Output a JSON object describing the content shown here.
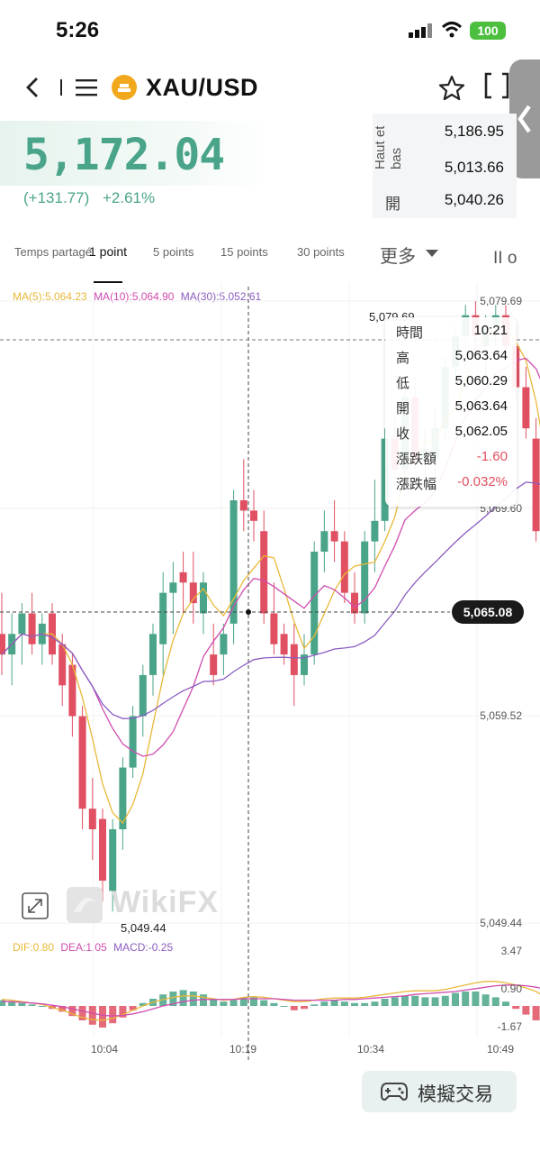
{
  "status": {
    "time": "5:26",
    "battery": "100"
  },
  "header": {
    "symbol": "XAU/USD"
  },
  "price": {
    "last": "5,172.04",
    "change": "(+131.77)",
    "change_pct": "+2.61%",
    "stats": [
      {
        "label": "Haut et bas",
        "value": "5,186.95"
      },
      {
        "label": "",
        "value": "5,013.66"
      },
      {
        "label": "開",
        "value": "5,040.26"
      }
    ]
  },
  "tabs": {
    "items": [
      "Temps partagé",
      "1 point",
      "5 points",
      "15 points",
      "30 points",
      "更多"
    ],
    "active": "1 point",
    "extra": "II o"
  },
  "ma_legend": {
    "ma5": "MA(5):5,064.23",
    "ma10": "MA(10):5,064.90",
    "ma30": "MA(30):5,052.61",
    "colors": {
      "ma5": "#e8b838",
      "ma10": "#d04cb0",
      "ma30": "#8a5cc0"
    }
  },
  "tooltip": {
    "rows": [
      {
        "k": "時間",
        "v": "10:21"
      },
      {
        "k": "高",
        "v": "5,063.64"
      },
      {
        "k": "低",
        "v": "5,060.29"
      },
      {
        "k": "開",
        "v": "5,063.64"
      },
      {
        "k": "收",
        "v": "5,062.05"
      },
      {
        "k": "漲跌額",
        "v": "-1.60"
      },
      {
        "k": "漲跌幅",
        "v": "-0.032%"
      }
    ]
  },
  "crosshair_price": "5,065.08",
  "macd_legend": {
    "dif": "DIF:0.80",
    "dea": "DEA:1.05",
    "macd": "MACD:-0.25"
  },
  "bottom_button": "模擬交易",
  "watermark": "WikiFX",
  "colors": {
    "up": "#4aa48a",
    "down": "#e05062"
  },
  "chart_data": {
    "type": "candlestick",
    "price_axis_ticks": [
      "5,079.69",
      "5,069.60",
      "5,059.52",
      "5,049.44"
    ],
    "macd_axis_ticks": [
      "3.47",
      "0.90",
      "-1.67"
    ],
    "x_ticks": [
      "10:04",
      "10:19",
      "10:34",
      "10:49"
    ],
    "ylim": [
      5049.44,
      5079.69
    ],
    "low_label": "5,049.44",
    "high_label": "5,079.69",
    "candles": [
      {
        "o": 5063.5,
        "h": 5065.5,
        "l": 5061.5,
        "c": 5062.5
      },
      {
        "o": 5062.5,
        "h": 5064.5,
        "l": 5061.0,
        "c": 5063.5
      },
      {
        "o": 5063.5,
        "h": 5065.0,
        "l": 5062.0,
        "c": 5064.5
      },
      {
        "o": 5064.5,
        "h": 5065.5,
        "l": 5062.5,
        "c": 5063.0
      },
      {
        "o": 5063.0,
        "h": 5064.5,
        "l": 5062.0,
        "c": 5064.0
      },
      {
        "o": 5064.5,
        "h": 5065.0,
        "l": 5062.0,
        "c": 5062.5
      },
      {
        "o": 5063.0,
        "h": 5063.5,
        "l": 5060.0,
        "c": 5061.0
      },
      {
        "o": 5062.0,
        "h": 5062.5,
        "l": 5058.5,
        "c": 5059.5
      },
      {
        "o": 5059.5,
        "h": 5060.0,
        "l": 5054.0,
        "c": 5055.0
      },
      {
        "o": 5055.0,
        "h": 5056.5,
        "l": 5052.5,
        "c": 5054.0
      },
      {
        "o": 5054.5,
        "h": 5055.0,
        "l": 5050.5,
        "c": 5051.5
      },
      {
        "o": 5051.0,
        "h": 5054.5,
        "l": 5050.0,
        "c": 5054.0
      },
      {
        "o": 5054.0,
        "h": 5057.5,
        "l": 5053.0,
        "c": 5057.0
      },
      {
        "o": 5057.0,
        "h": 5060.0,
        "l": 5056.5,
        "c": 5059.5
      },
      {
        "o": 5059.5,
        "h": 5062.0,
        "l": 5058.5,
        "c": 5061.5
      },
      {
        "o": 5061.5,
        "h": 5064.0,
        "l": 5060.5,
        "c": 5063.5
      },
      {
        "o": 5063.0,
        "h": 5066.5,
        "l": 5061.5,
        "c": 5065.5
      },
      {
        "o": 5065.5,
        "h": 5067.0,
        "l": 5063.5,
        "c": 5066.0
      },
      {
        "o": 5066.5,
        "h": 5067.5,
        "l": 5064.5,
        "c": 5066.0
      },
      {
        "o": 5066.0,
        "h": 5067.5,
        "l": 5064.0,
        "c": 5065.0
      },
      {
        "o": 5064.5,
        "h": 5066.5,
        "l": 5063.5,
        "c": 5066.0
      },
      {
        "o": 5062.5,
        "h": 5064.0,
        "l": 5061.0,
        "c": 5061.5
      },
      {
        "o": 5062.5,
        "h": 5064.0,
        "l": 5061.5,
        "c": 5063.5
      },
      {
        "o": 5064.0,
        "h": 5070.5,
        "l": 5063.0,
        "c": 5070.0
      },
      {
        "o": 5070.0,
        "h": 5072.0,
        "l": 5068.5,
        "c": 5069.5
      },
      {
        "o": 5069.5,
        "h": 5070.5,
        "l": 5068.0,
        "c": 5069.0
      },
      {
        "o": 5068.5,
        "h": 5069.5,
        "l": 5064.0,
        "c": 5064.5
      },
      {
        "o": 5064.5,
        "h": 5066.0,
        "l": 5062.5,
        "c": 5063.0
      },
      {
        "o": 5063.5,
        "h": 5064.0,
        "l": 5062.0,
        "c": 5062.5
      },
      {
        "o": 5063.0,
        "h": 5064.0,
        "l": 5060.0,
        "c": 5061.5
      },
      {
        "o": 5061.5,
        "h": 5063.5,
        "l": 5061.0,
        "c": 5062.5
      },
      {
        "o": 5062.5,
        "h": 5068.0,
        "l": 5062.0,
        "c": 5067.5
      },
      {
        "o": 5067.5,
        "h": 5069.5,
        "l": 5066.5,
        "c": 5068.5
      },
      {
        "o": 5068.5,
        "h": 5070.0,
        "l": 5067.0,
        "c": 5068.0
      },
      {
        "o": 5068.0,
        "h": 5068.5,
        "l": 5065.0,
        "c": 5065.5
      },
      {
        "o": 5065.5,
        "h": 5066.5,
        "l": 5064.0,
        "c": 5064.5
      },
      {
        "o": 5064.5,
        "h": 5068.5,
        "l": 5064.0,
        "c": 5068.0
      },
      {
        "o": 5068.0,
        "h": 5071.0,
        "l": 5066.5,
        "c": 5069.0
      },
      {
        "o": 5069.0,
        "h": 5073.5,
        "l": 5068.5,
        "c": 5073.0
      },
      {
        "o": 5073.0,
        "h": 5074.0,
        "l": 5071.0,
        "c": 5071.5
      },
      {
        "o": 5071.5,
        "h": 5075.5,
        "l": 5071.0,
        "c": 5075.0
      },
      {
        "o": 5075.0,
        "h": 5076.0,
        "l": 5071.5,
        "c": 5072.0
      },
      {
        "o": 5072.0,
        "h": 5073.5,
        "l": 5071.0,
        "c": 5072.5
      },
      {
        "o": 5072.0,
        "h": 5074.5,
        "l": 5071.0,
        "c": 5073.5
      },
      {
        "o": 5073.5,
        "h": 5077.0,
        "l": 5073.0,
        "c": 5076.5
      },
      {
        "o": 5076.5,
        "h": 5078.5,
        "l": 5075.5,
        "c": 5078.0
      },
      {
        "o": 5078.0,
        "h": 5079.5,
        "l": 5076.5,
        "c": 5079.0
      },
      {
        "o": 5079.0,
        "h": 5079.69,
        "l": 5077.0,
        "c": 5078.0
      },
      {
        "o": 5077.5,
        "h": 5079.0,
        "l": 5076.0,
        "c": 5078.5
      },
      {
        "o": 5078.5,
        "h": 5079.5,
        "l": 5077.5,
        "c": 5079.0
      },
      {
        "o": 5079.0,
        "h": 5079.5,
        "l": 5077.0,
        "c": 5077.5
      },
      {
        "o": 5077.5,
        "h": 5078.5,
        "l": 5075.0,
        "c": 5075.5
      },
      {
        "o": 5075.5,
        "h": 5076.5,
        "l": 5073.0,
        "c": 5073.5
      },
      {
        "o": 5073.0,
        "h": 5074.0,
        "l": 5068.0,
        "c": 5068.5
      },
      {
        "o": 5068.5,
        "h": 5070.5,
        "l": 5064.5,
        "c": 5065.0
      }
    ],
    "macd_hist": [
      0.4,
      0.3,
      0.2,
      0.1,
      0.0,
      -0.2,
      -0.4,
      -0.7,
      -1.0,
      -1.3,
      -1.5,
      -1.2,
      -0.8,
      -0.3,
      0.2,
      0.5,
      0.8,
      1.0,
      1.1,
      1.0,
      0.8,
      0.5,
      0.3,
      0.4,
      0.6,
      0.6,
      0.4,
      0.2,
      0.0,
      -0.3,
      -0.2,
      0.1,
      0.3,
      0.4,
      0.3,
      0.2,
      0.2,
      0.3,
      0.5,
      0.6,
      0.7,
      0.7,
      0.6,
      0.6,
      0.7,
      0.9,
      1.0,
      1.0,
      0.8,
      0.6,
      0.3,
      -0.2,
      -0.6,
      -1.0,
      -1.6
    ],
    "dif": [
      0.9,
      0.8,
      0.6,
      0.4,
      0.2,
      -0.2,
      -0.6,
      -1.1,
      -1.6,
      -1.9,
      -2.0,
      -1.7,
      -1.2,
      -0.6,
      0.0,
      0.5,
      0.9,
      1.2,
      1.4,
      1.4,
      1.2,
      1.0,
      0.8,
      0.9,
      1.2,
      1.3,
      1.2,
      1.0,
      0.8,
      0.6,
      0.6,
      0.8,
      1.0,
      1.1,
      1.1,
      1.1,
      1.2,
      1.4,
      1.6,
      1.8,
      2.0,
      2.1,
      2.1,
      2.1,
      2.3,
      2.6,
      2.9,
      3.2,
      3.4,
      3.4,
      3.2,
      2.9,
      2.5,
      2.0,
      1.2
    ],
    "dea": [
      0.6,
      0.6,
      0.5,
      0.4,
      0.3,
      0.1,
      -0.1,
      -0.4,
      -0.7,
      -1.0,
      -1.3,
      -1.4,
      -1.3,
      -1.1,
      -0.8,
      -0.4,
      0.0,
      0.3,
      0.6,
      0.8,
      0.9,
      0.9,
      0.9,
      0.9,
      1.0,
      1.0,
      1.0,
      1.0,
      0.9,
      0.8,
      0.8,
      0.8,
      0.8,
      0.8,
      0.9,
      0.9,
      1.0,
      1.1,
      1.2,
      1.3,
      1.4,
      1.6,
      1.7,
      1.8,
      1.9,
      2.0,
      2.2,
      2.4,
      2.6,
      2.8,
      2.9,
      2.9,
      2.8,
      2.6,
      2.3
    ]
  }
}
